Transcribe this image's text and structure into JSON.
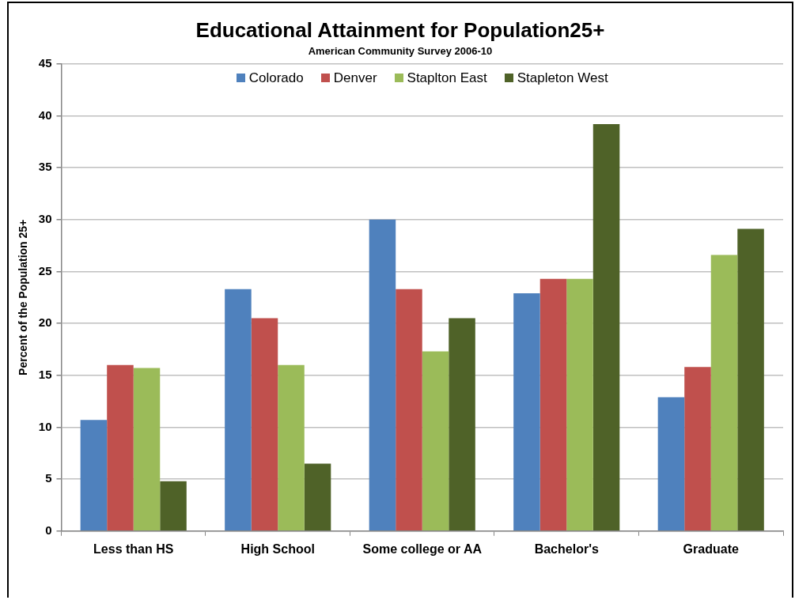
{
  "chart_data": {
    "type": "bar",
    "title": "Educational Attainment for Population25+",
    "subtitle": "American Community Survey 2006-10",
    "ylabel": "Percent of the Population 25+",
    "categories": [
      "Less than HS",
      "High School",
      "Some college or AA",
      "Bachelor's",
      "Graduate"
    ],
    "series": [
      {
        "name": "Colorado",
        "color": "#4f81bd",
        "values": [
          10.7,
          23.3,
          30.0,
          22.9,
          12.9
        ]
      },
      {
        "name": "Denver",
        "color": "#c0504d",
        "values": [
          16.0,
          20.5,
          23.3,
          24.3,
          15.8
        ]
      },
      {
        "name": "Staplton East",
        "color": "#9bbb59",
        "values": [
          15.7,
          16.0,
          17.3,
          24.3,
          26.6
        ]
      },
      {
        "name": "Stapleton West",
        "color": "#4f6228",
        "values": [
          4.8,
          6.5,
          20.5,
          39.2,
          29.1
        ]
      }
    ],
    "ylim": [
      0,
      45
    ],
    "yticks": [
      0,
      5,
      10,
      15,
      20,
      25,
      30,
      35,
      40,
      45
    ],
    "grid": "y",
    "legend": "top"
  }
}
